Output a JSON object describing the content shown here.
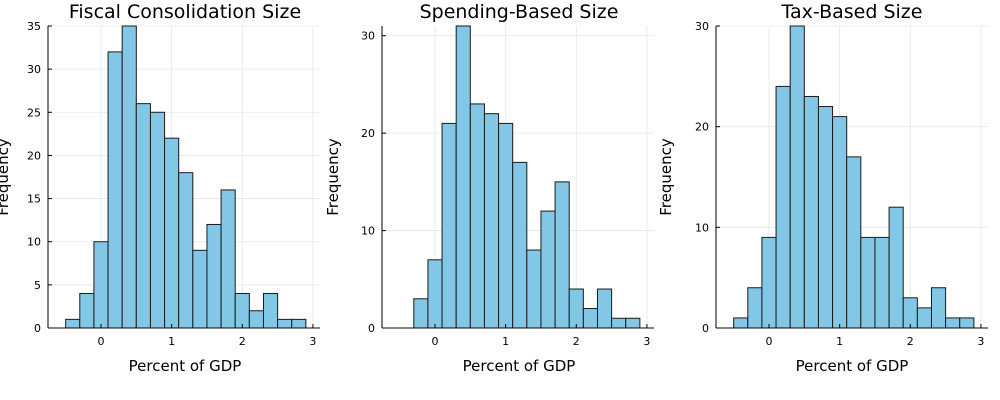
{
  "chart_data": [
    {
      "type": "bar",
      "title": "Fiscal Consolidation Size",
      "xlabel": "Percent of GDP",
      "ylabel": "Frequency",
      "xlim": [
        -0.75,
        3.1
      ],
      "ylim": [
        0,
        35
      ],
      "xticks": [
        0,
        1,
        2,
        3
      ],
      "yticks": [
        0,
        5,
        10,
        15,
        20,
        25,
        30,
        35
      ],
      "bin_width": 0.2,
      "bins": [
        {
          "x0": -0.5,
          "count": 1
        },
        {
          "x0": -0.3,
          "count": 4
        },
        {
          "x0": -0.1,
          "count": 10
        },
        {
          "x0": 0.1,
          "count": 32
        },
        {
          "x0": 0.3,
          "count": 35
        },
        {
          "x0": 0.5,
          "count": 26
        },
        {
          "x0": 0.7,
          "count": 25
        },
        {
          "x0": 0.9,
          "count": 22
        },
        {
          "x0": 1.1,
          "count": 18
        },
        {
          "x0": 1.3,
          "count": 9
        },
        {
          "x0": 1.5,
          "count": 12
        },
        {
          "x0": 1.7,
          "count": 16
        },
        {
          "x0": 1.9,
          "count": 4
        },
        {
          "x0": 2.1,
          "count": 2
        },
        {
          "x0": 2.3,
          "count": 4
        },
        {
          "x0": 2.5,
          "count": 1
        },
        {
          "x0": 2.7,
          "count": 1
        }
      ],
      "grid": true,
      "bar_color": "#83c7e6"
    },
    {
      "type": "bar",
      "title": "Spending-Based Size",
      "xlabel": "Percent of GDP",
      "ylabel": "Frequency",
      "xlim": [
        -0.75,
        3.1
      ],
      "ylim": [
        0,
        31
      ],
      "xticks": [
        0,
        1,
        2,
        3
      ],
      "yticks": [
        0,
        10,
        20,
        30
      ],
      "bin_width": 0.2,
      "bins": [
        {
          "x0": -0.3,
          "count": 3
        },
        {
          "x0": -0.1,
          "count": 7
        },
        {
          "x0": 0.1,
          "count": 21
        },
        {
          "x0": 0.3,
          "count": 31
        },
        {
          "x0": 0.5,
          "count": 23
        },
        {
          "x0": 0.7,
          "count": 22
        },
        {
          "x0": 0.9,
          "count": 21
        },
        {
          "x0": 1.1,
          "count": 17
        },
        {
          "x0": 1.3,
          "count": 8
        },
        {
          "x0": 1.5,
          "count": 12
        },
        {
          "x0": 1.7,
          "count": 15
        },
        {
          "x0": 1.9,
          "count": 4
        },
        {
          "x0": 2.1,
          "count": 2
        },
        {
          "x0": 2.3,
          "count": 4
        },
        {
          "x0": 2.5,
          "count": 1
        },
        {
          "x0": 2.7,
          "count": 1
        }
      ],
      "grid": true,
      "bar_color": "#83c7e6"
    },
    {
      "type": "bar",
      "title": "Tax-Based Size",
      "xlabel": "Percent of GDP",
      "ylabel": "Frequency",
      "xlim": [
        -0.75,
        3.1
      ],
      "ylim": [
        0,
        30
      ],
      "xticks": [
        0,
        1,
        2,
        3
      ],
      "yticks": [
        0,
        10,
        20,
        30
      ],
      "bin_width": 0.2,
      "bins": [
        {
          "x0": -0.5,
          "count": 1
        },
        {
          "x0": -0.3,
          "count": 4
        },
        {
          "x0": -0.1,
          "count": 9
        },
        {
          "x0": 0.1,
          "count": 24
        },
        {
          "x0": 0.3,
          "count": 30
        },
        {
          "x0": 0.5,
          "count": 23
        },
        {
          "x0": 0.7,
          "count": 22
        },
        {
          "x0": 0.9,
          "count": 21
        },
        {
          "x0": 1.1,
          "count": 17
        },
        {
          "x0": 1.3,
          "count": 9
        },
        {
          "x0": 1.5,
          "count": 9
        },
        {
          "x0": 1.7,
          "count": 12
        },
        {
          "x0": 1.9,
          "count": 3
        },
        {
          "x0": 2.1,
          "count": 2
        },
        {
          "x0": 2.3,
          "count": 4
        },
        {
          "x0": 2.5,
          "count": 1
        },
        {
          "x0": 2.7,
          "count": 1
        }
      ],
      "grid": true,
      "bar_color": "#83c7e6"
    }
  ]
}
